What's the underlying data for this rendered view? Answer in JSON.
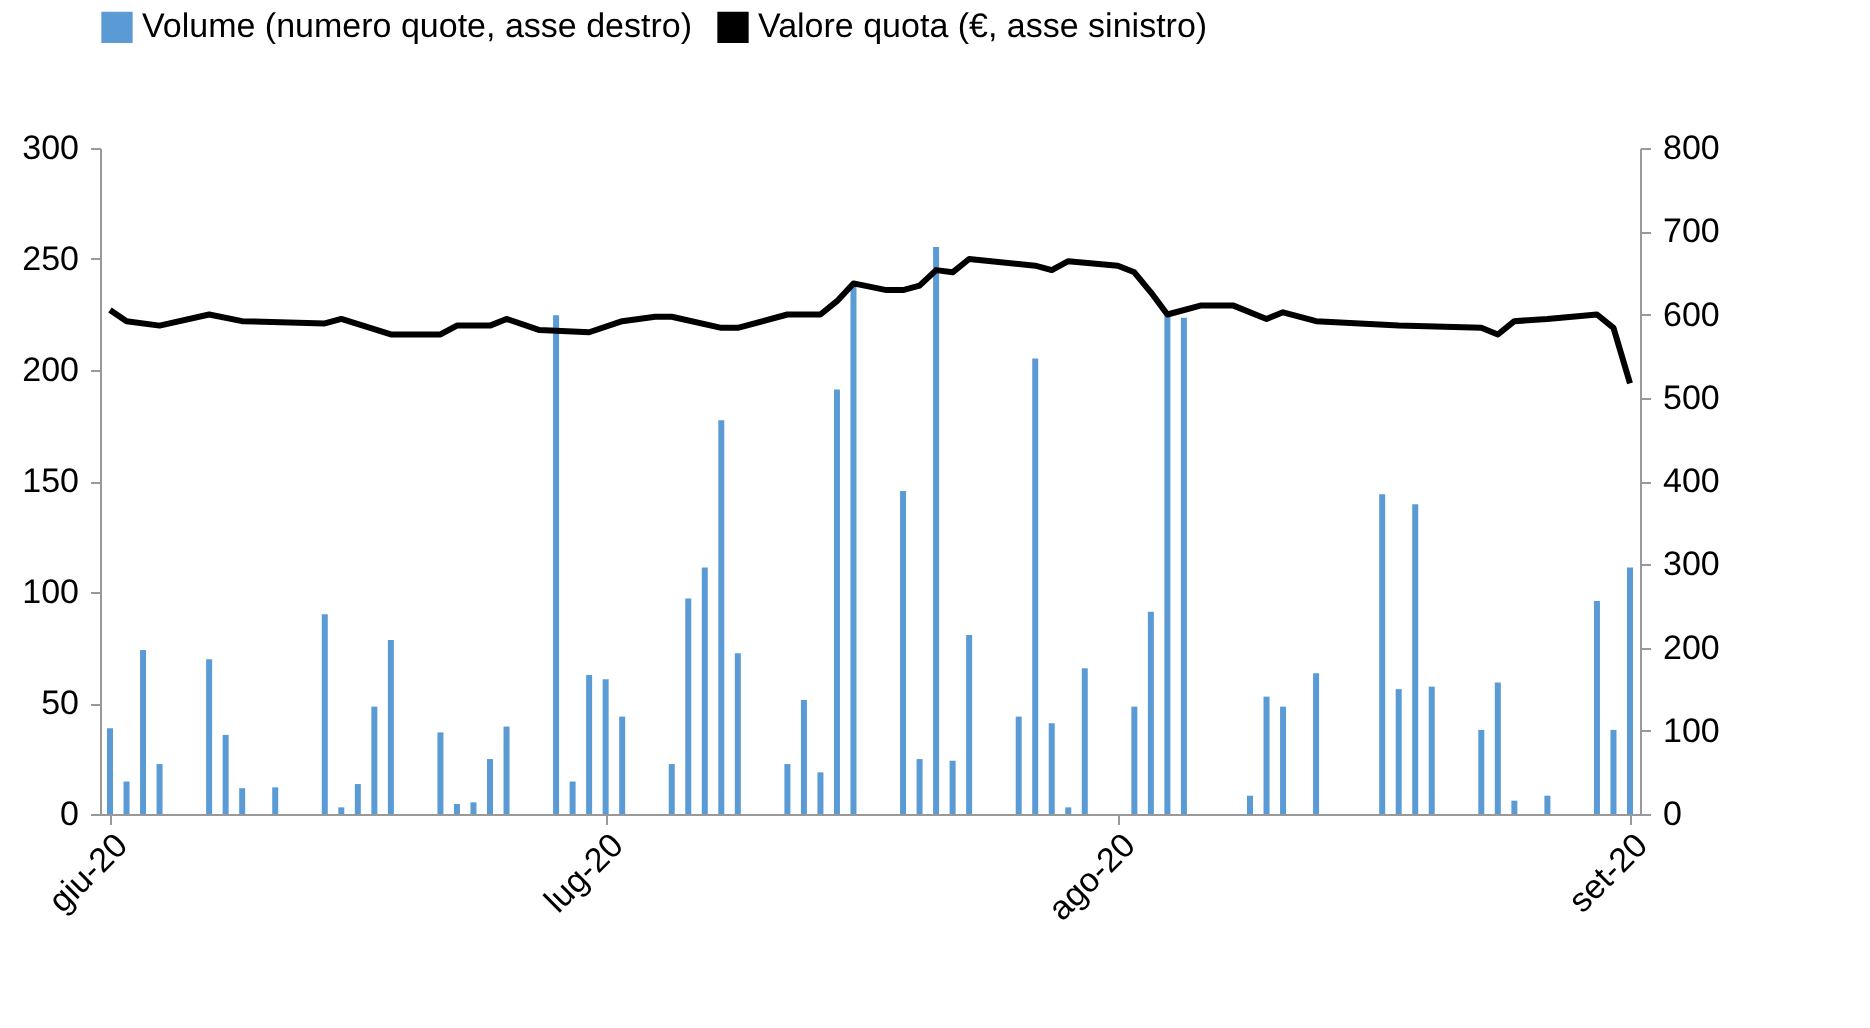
{
  "chart_data": {
    "type": "bar",
    "xlim": [
      "2020-06-01",
      "2020-09-01"
    ],
    "xticks": [
      {
        "value": "2020-06-01",
        "label": "giu-20"
      },
      {
        "value": "2020-07-01",
        "label": "lug-20"
      },
      {
        "value": "2020-08-01",
        "label": "ago-20"
      },
      {
        "value": "2020-09-01",
        "label": "set-20"
      }
    ],
    "ylim": [
      0,
      300
    ],
    "yticks": [
      0,
      50,
      100,
      150,
      200,
      250,
      300
    ],
    "y2lim": [
      0,
      800
    ],
    "y2ticks": [
      0,
      100,
      200,
      300,
      400,
      500,
      600,
      700,
      800
    ],
    "grid": false,
    "legend": "top",
    "series": [
      {
        "name": "Volume (numero quote, asse destro)",
        "axis": "y2",
        "color": "#5b9bd5",
        "x": [
          "2020-06-01",
          "2020-06-02",
          "2020-06-03",
          "2020-06-04",
          "2020-06-07",
          "2020-06-08",
          "2020-06-09",
          "2020-06-11",
          "2020-06-14",
          "2020-06-15",
          "2020-06-16",
          "2020-06-17",
          "2020-06-18",
          "2020-06-21",
          "2020-06-22",
          "2020-06-23",
          "2020-06-24",
          "2020-06-25",
          "2020-06-28",
          "2020-06-29",
          "2020-06-30",
          "2020-07-01",
          "2020-07-02",
          "2020-07-05",
          "2020-07-06",
          "2020-07-07",
          "2020-07-08",
          "2020-07-09",
          "2020-07-12",
          "2020-07-13",
          "2020-07-14",
          "2020-07-15",
          "2020-07-16",
          "2020-07-19",
          "2020-07-20",
          "2020-07-21",
          "2020-07-22",
          "2020-07-23",
          "2020-07-26",
          "2020-07-27",
          "2020-07-28",
          "2020-07-29",
          "2020-07-30",
          "2020-08-02",
          "2020-08-03",
          "2020-08-04",
          "2020-08-05",
          "2020-08-09",
          "2020-08-10",
          "2020-08-11",
          "2020-08-13",
          "2020-08-17",
          "2020-08-18",
          "2020-08-19",
          "2020-08-20",
          "2020-08-23",
          "2020-08-24",
          "2020-08-25",
          "2020-08-27",
          "2020-08-30",
          "2020-08-31",
          "2020-09-01"
        ],
        "values": [
          103,
          39,
          197,
          60,
          186,
          95,
          31,
          32,
          240,
          8,
          36,
          129,
          209,
          98,
          12,
          14,
          66,
          105,
          599,
          39,
          167,
          162,
          117,
          60,
          259,
          296,
          473,
          193,
          60,
          137,
          50,
          510,
          637,
          388,
          66,
          681,
          64,
          215,
          117,
          547,
          109,
          8,
          175,
          129,
          243,
          603,
          596,
          22,
          141,
          129,
          169,
          384,
          150,
          372,
          153,
          101,
          158,
          16,
          22,
          256,
          101,
          296
        ]
      },
      {
        "name": "Valore quota (€, asse sinistro)",
        "type": "line",
        "color": "#000000",
        "marker": "none",
        "line_style": "solid",
        "x": [
          "2020-06-01",
          "2020-06-02",
          "2020-06-04",
          "2020-06-07",
          "2020-06-09",
          "2020-06-14",
          "2020-06-15",
          "2020-06-18",
          "2020-06-21",
          "2020-06-22",
          "2020-06-24",
          "2020-06-25",
          "2020-06-27",
          "2020-06-30",
          "2020-07-02",
          "2020-07-04",
          "2020-07-05",
          "2020-07-08",
          "2020-07-09",
          "2020-07-12",
          "2020-07-14",
          "2020-07-15",
          "2020-07-16",
          "2020-07-18",
          "2020-07-19",
          "2020-07-20",
          "2020-07-21",
          "2020-07-22",
          "2020-07-23",
          "2020-07-27",
          "2020-07-28",
          "2020-07-29",
          "2020-08-01",
          "2020-08-02",
          "2020-08-03",
          "2020-08-04",
          "2020-08-06",
          "2020-08-08",
          "2020-08-10",
          "2020-08-11",
          "2020-08-13",
          "2020-08-18",
          "2020-08-23",
          "2020-08-24",
          "2020-08-25",
          "2020-08-27",
          "2020-08-30",
          "2020-08-31",
          "2020-09-01"
        ],
        "values": [
          227,
          222,
          220,
          225,
          222,
          221,
          223,
          216,
          216,
          220,
          220,
          223,
          218,
          217,
          222,
          224,
          224,
          219,
          219,
          225,
          225,
          231,
          239,
          236,
          236,
          238,
          245,
          244,
          250,
          247,
          245,
          249,
          247,
          244,
          235,
          225,
          229,
          229,
          223,
          226,
          222,
          220,
          219,
          216,
          222,
          223,
          225,
          219,
          194
        ]
      }
    ]
  }
}
